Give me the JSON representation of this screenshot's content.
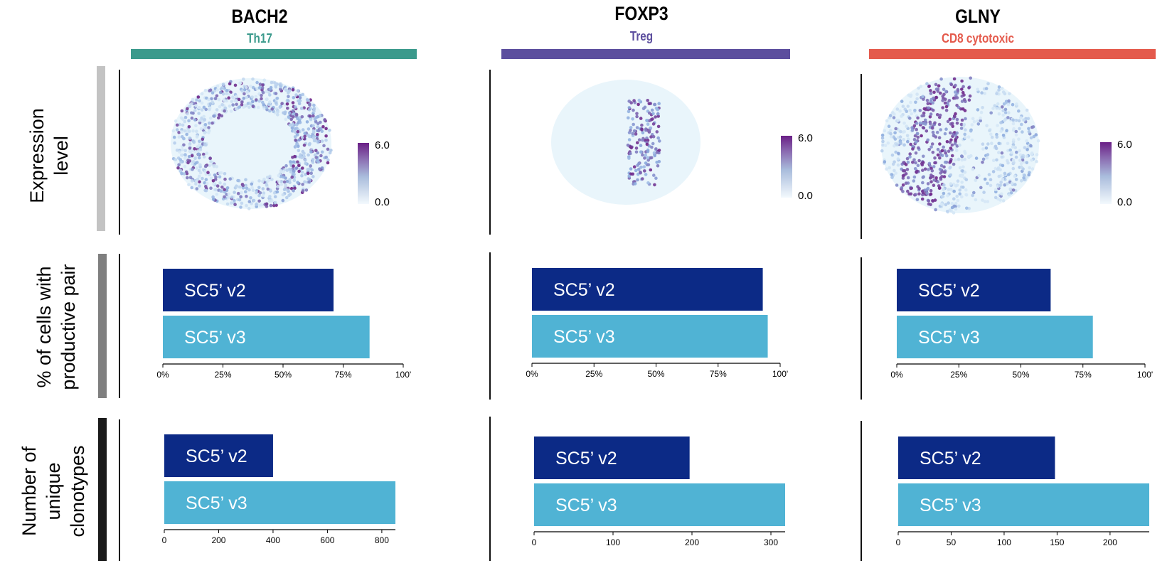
{
  "panels": [
    {
      "gene": "BACH2",
      "cell_type": "Th17",
      "color": "#3b9a8c",
      "umap_pattern": "ring",
      "colorbar": {
        "max_label": "6.0",
        "min_label": "0.0"
      }
    },
    {
      "gene": "FOXP3",
      "cell_type": "Treg",
      "color": "#5c4e9e",
      "umap_pattern": "center-cluster",
      "colorbar": {
        "max_label": "6.0",
        "min_label": "0.0"
      }
    },
    {
      "gene": "GLNY",
      "cell_type": "CD8 cytotoxic",
      "color": "#e45a4c",
      "umap_pattern": "left-band",
      "colorbar": {
        "max_label": "6.0",
        "min_label": "0.0"
      }
    }
  ],
  "row_labels": {
    "expression": [
      "Expression",
      "level"
    ],
    "productive": [
      "% of cells with",
      "productive pair"
    ],
    "clonotypes": [
      "Number of",
      "unique",
      "clonotypes"
    ]
  },
  "row_bar_colors": {
    "expression": "#c3c3c3",
    "productive": "#7f7f7f",
    "clonotypes": "#1b1b1b"
  },
  "series_colors": {
    "SC5' v2": "#0c2a86",
    "SC5' v3": "#50b3d4"
  },
  "chart_data": [
    {
      "type": "bar",
      "panel": "BACH2",
      "orientation": "horizontal",
      "categories": [
        "SC5’ v2",
        "SC5’ v3"
      ],
      "values": [
        71,
        86
      ],
      "xlim": [
        0,
        100
      ],
      "tick_values": [
        0,
        25,
        50,
        75,
        100
      ],
      "tick_labels": [
        "0%",
        "25%",
        "50%",
        "75%",
        "100'"
      ]
    },
    {
      "type": "bar",
      "panel": "FOXP3",
      "orientation": "horizontal",
      "categories": [
        "SC5’ v2",
        "SC5’ v3"
      ],
      "values": [
        93,
        95
      ],
      "xlim": [
        0,
        100
      ],
      "tick_values": [
        0,
        25,
        50,
        75,
        100
      ],
      "tick_labels": [
        "0%",
        "25%",
        "50%",
        "75%",
        "100'"
      ]
    },
    {
      "type": "bar",
      "panel": "GLNY",
      "orientation": "horizontal",
      "categories": [
        "SC5’ v2",
        "SC5’ v3"
      ],
      "values": [
        62,
        79
      ],
      "xlim": [
        0,
        100
      ],
      "tick_values": [
        0,
        25,
        50,
        75,
        100
      ],
      "tick_labels": [
        "0%",
        "25%",
        "50%",
        "75%",
        "100'"
      ]
    },
    {
      "type": "bar",
      "panel": "BACH2",
      "orientation": "horizontal",
      "categories": [
        "SC5’ v2",
        "SC5’ v3"
      ],
      "values": [
        400,
        850
      ],
      "xlim": [
        0,
        850
      ],
      "tick_values": [
        0,
        200,
        400,
        600,
        800
      ],
      "tick_labels": [
        "0",
        "200",
        "400",
        "600",
        "800"
      ]
    },
    {
      "type": "bar",
      "panel": "FOXP3",
      "orientation": "horizontal",
      "categories": [
        "SC5’ v2",
        "SC5’ v3"
      ],
      "values": [
        197,
        318
      ],
      "xlim": [
        0,
        318
      ],
      "tick_values": [
        0,
        100,
        200,
        300
      ],
      "tick_labels": [
        "0",
        "100",
        "200",
        "300"
      ]
    },
    {
      "type": "bar",
      "panel": "GLNY",
      "orientation": "horizontal",
      "categories": [
        "SC5’ v2",
        "SC5’ v3"
      ],
      "values": [
        148,
        237
      ],
      "xlim": [
        0,
        237
      ],
      "tick_values": [
        0,
        50,
        100,
        150,
        200
      ],
      "tick_labels": [
        "0",
        "50",
        "100",
        "150",
        "200"
      ]
    }
  ]
}
